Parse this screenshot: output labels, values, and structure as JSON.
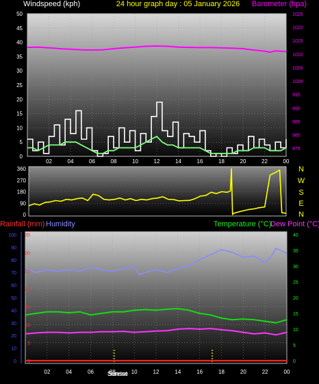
{
  "colors": {
    "wind": "#ffffff",
    "gust": "#e8e8e8",
    "wind_avg": "#7cff7c",
    "barometer": "#ff00ff",
    "direction": "#ffff00",
    "humidity": "#8a8aff",
    "temperature": "#11dd11",
    "dewpoint": "#ff33ff",
    "rainfall": "#ff2222",
    "axis_left": "#ffffff",
    "axis_baro": "#ff00ff",
    "axis_rain": "#ff3030",
    "axis_hum": "#5050ff",
    "axis_temp": "#22ee22",
    "sun": "#ffff00"
  },
  "header": {
    "left": "Windspeed (kph)",
    "center": "24 hour graph day : 05 January 2026",
    "right": "Barometer (hpa)"
  },
  "lower_header": {
    "rainfall": "Rainfall (mm)",
    "humidity": "Humidity",
    "temperature": "Temperature (°C)",
    "dewpoint": "Dew Point (°C)"
  },
  "compass": [
    "N",
    "W",
    "S",
    "E",
    "N"
  ],
  "sun": {
    "sunrise_label": "Sunrise",
    "sunset_label": "Sunset",
    "sunrise_hour": 8.15,
    "sunset_hour": 17.15
  },
  "chart_data": [
    {
      "type": "line",
      "name": "wind-barometer",
      "x_tick_labels": [
        "02",
        "04",
        "06",
        "08",
        "10",
        "12",
        "14",
        "16",
        "18",
        "20",
        "22",
        "00"
      ],
      "x_tick_hours": [
        2,
        4,
        6,
        8,
        10,
        12,
        14,
        16,
        18,
        20,
        22,
        24
      ],
      "xlim": [
        0,
        24
      ],
      "ylim_left": [
        0,
        50
      ],
      "y_ticks_left": [
        0,
        5,
        10,
        15,
        20,
        25,
        30,
        35,
        40,
        45,
        50
      ],
      "ylim_right": [
        972,
        1025
      ],
      "y_ticks_right": [
        975,
        980,
        985,
        990,
        995,
        1000,
        1005,
        1010,
        1015,
        1020,
        1025
      ],
      "series": [
        {
          "name": "Windspeed",
          "axis": "left",
          "x": [
            0,
            0.5,
            1,
            1.5,
            2,
            2.5,
            3,
            3.5,
            4,
            4.5,
            5,
            5.5,
            6,
            6.5,
            7,
            7.5,
            8,
            8.5,
            9,
            9.5,
            10,
            10.5,
            11,
            11.5,
            12,
            12.5,
            13,
            13.5,
            14,
            14.5,
            15,
            15.5,
            16,
            16.5,
            17,
            17.5,
            18,
            18.5,
            19,
            19.5,
            20,
            20.5,
            21,
            21.5,
            22,
            22.5,
            23,
            23.5,
            24
          ],
          "y": [
            6,
            2,
            5,
            1,
            7,
            11,
            4,
            13,
            8,
            16,
            6,
            10,
            2,
            0,
            1,
            7,
            3,
            10,
            5,
            9,
            2,
            8,
            5,
            14,
            19,
            9,
            7,
            12,
            3,
            8,
            7,
            5,
            9,
            2,
            0,
            1,
            0,
            3,
            1,
            4,
            2,
            7,
            3,
            6,
            4,
            2,
            5,
            3,
            6
          ]
        },
        {
          "name": "Average wind",
          "axis": "left",
          "x": [
            0,
            0.5,
            1,
            1.5,
            2,
            2.5,
            3,
            3.5,
            4,
            4.5,
            5,
            5.5,
            6,
            6.5,
            7,
            7.5,
            8,
            8.5,
            9,
            9.5,
            10,
            10.5,
            11,
            11.5,
            12,
            12.5,
            13,
            13.5,
            14,
            14.5,
            15,
            15.5,
            16,
            16.5,
            17,
            17.5,
            18,
            18.5,
            19,
            19.5,
            20,
            20.5,
            21,
            21.5,
            22,
            22.5,
            23,
            23.5,
            24
          ],
          "y": [
            3,
            3,
            2,
            3,
            4,
            4,
            4,
            5,
            5,
            5,
            4,
            3,
            2,
            1,
            1,
            2,
            2,
            3,
            3,
            3,
            3,
            4,
            5,
            6,
            7,
            5,
            4,
            4,
            3,
            3,
            3,
            3,
            3,
            2,
            1,
            1,
            1,
            1,
            1,
            2,
            2,
            2,
            3,
            3,
            3,
            2,
            2,
            2,
            3
          ]
        },
        {
          "name": "Barometer",
          "axis": "right",
          "x": [
            0,
            1,
            2,
            3,
            4,
            5,
            6,
            7,
            8,
            9,
            10,
            11,
            12,
            13,
            14,
            15,
            16,
            17,
            18,
            19,
            20,
            21,
            22,
            22.5,
            23,
            24
          ],
          "y": [
            1012.5,
            1012.6,
            1012.3,
            1012.0,
            1011.8,
            1011.6,
            1011.5,
            1011.6,
            1012.0,
            1012.3,
            1012.6,
            1012.9,
            1013.0,
            1012.9,
            1012.6,
            1012.5,
            1012.4,
            1012.4,
            1012.3,
            1012.2,
            1012.0,
            1011.5,
            1011.1,
            1010.7,
            1011.2,
            1010.9
          ]
        }
      ]
    },
    {
      "type": "line",
      "name": "wind-direction",
      "x_tick_labels": [
        "02",
        "04",
        "06",
        "08",
        "10",
        "12",
        "14",
        "16",
        "18",
        "20",
        "22",
        "00"
      ],
      "xlim": [
        0,
        24
      ],
      "ylim": [
        0,
        360
      ],
      "y_tick_labels": [
        "0",
        "90",
        "180",
        "270",
        "360"
      ],
      "y_ticks": [
        0,
        90,
        180,
        270,
        360
      ],
      "series": [
        {
          "name": "Direction",
          "x": [
            0,
            0.5,
            1,
            1.5,
            2,
            2.5,
            3,
            3.5,
            4,
            4.5,
            5,
            5.5,
            6,
            6.5,
            7,
            7.5,
            8,
            8.5,
            9,
            9.5,
            10,
            10.5,
            11,
            11.5,
            12,
            12.5,
            13,
            13.5,
            14,
            14.5,
            15,
            15.5,
            16,
            16.5,
            17,
            17.5,
            18,
            18.5,
            18.8,
            18.9,
            19.0,
            19.1,
            19.5,
            20,
            20.5,
            21,
            21.5,
            22,
            22.5,
            23.0,
            23.4,
            23.6,
            24
          ],
          "y": [
            70,
            85,
            75,
            95,
            100,
            110,
            105,
            120,
            115,
            125,
            130,
            110,
            160,
            150,
            120,
            115,
            120,
            130,
            115,
            125,
            110,
            120,
            115,
            125,
            130,
            140,
            120,
            118,
            108,
            110,
            112,
            125,
            145,
            150,
            175,
            165,
            180,
            175,
            185,
            360,
            0,
            10,
            20,
            30,
            40,
            45,
            55,
            60,
            310,
            330,
            350,
            15,
            10
          ]
        }
      ]
    },
    {
      "type": "line",
      "name": "temp-humidity-rain",
      "x_tick_labels": [
        "02",
        "04",
        "06",
        "08",
        "10",
        "12",
        "14",
        "16",
        "18",
        "20",
        "22",
        "00"
      ],
      "xlim": [
        0,
        24
      ],
      "ylim_humidity": [
        0,
        100
      ],
      "y_ticks_humidity": [
        0,
        10,
        20,
        30,
        40,
        50,
        60,
        70,
        80,
        90,
        100
      ],
      "ylim_rain": [
        0,
        35
      ],
      "y_ticks_rain": [
        0,
        5,
        10,
        15,
        20,
        25,
        30,
        35
      ],
      "ylim_temp": [
        0,
        40
      ],
      "y_ticks_temp": [
        0,
        5,
        10,
        15,
        20,
        25,
        30,
        35,
        40
      ],
      "series": [
        {
          "name": "Humidity",
          "axis": "humidity",
          "x": [
            0,
            1,
            2,
            3,
            4,
            5,
            6,
            7,
            8,
            9,
            10,
            10.5,
            11,
            12,
            13,
            14,
            15,
            16,
            17,
            18,
            19,
            20,
            21,
            22,
            22.5,
            23,
            24
          ],
          "y": [
            73,
            70,
            72,
            71,
            72,
            71,
            74,
            72,
            71,
            73,
            74,
            68,
            70,
            72,
            70,
            73,
            75,
            80,
            84,
            88,
            86,
            82,
            83,
            78,
            82,
            89,
            85
          ]
        },
        {
          "name": "Temperature",
          "axis": "temp",
          "x": [
            0,
            1,
            2,
            3,
            4,
            5,
            6,
            7,
            8,
            9,
            10,
            11,
            12,
            13,
            14,
            15,
            16,
            17,
            18,
            19,
            20,
            21,
            22,
            23,
            24
          ],
          "y": [
            14.5,
            15,
            15.5,
            15.5,
            15.2,
            15.5,
            14.5,
            15.0,
            15.5,
            15.5,
            16.0,
            16.2,
            16.0,
            16.3,
            16.5,
            16.0,
            15.0,
            14.5,
            13.5,
            13.0,
            13.2,
            13.0,
            12.5,
            12.0,
            13.0
          ]
        },
        {
          "name": "Dew Point",
          "axis": "temp",
          "x": [
            0,
            1,
            2,
            3,
            4,
            5,
            6,
            7,
            8,
            9,
            10,
            11,
            12,
            13,
            14,
            15,
            16,
            17,
            18,
            19,
            20,
            21,
            22,
            23,
            24
          ],
          "y": [
            8.5,
            8.8,
            9.0,
            9.0,
            8.8,
            9.0,
            9.0,
            9.2,
            9.2,
            9.3,
            9.0,
            9.2,
            9.4,
            9.5,
            10.0,
            10.2,
            10.0,
            10.2,
            9.8,
            9.5,
            9.0,
            8.5,
            8.8,
            8.2,
            9.0
          ]
        },
        {
          "name": "Rainfall",
          "axis": "rain",
          "x": [
            0,
            24
          ],
          "y": [
            0,
            0
          ]
        }
      ]
    }
  ]
}
